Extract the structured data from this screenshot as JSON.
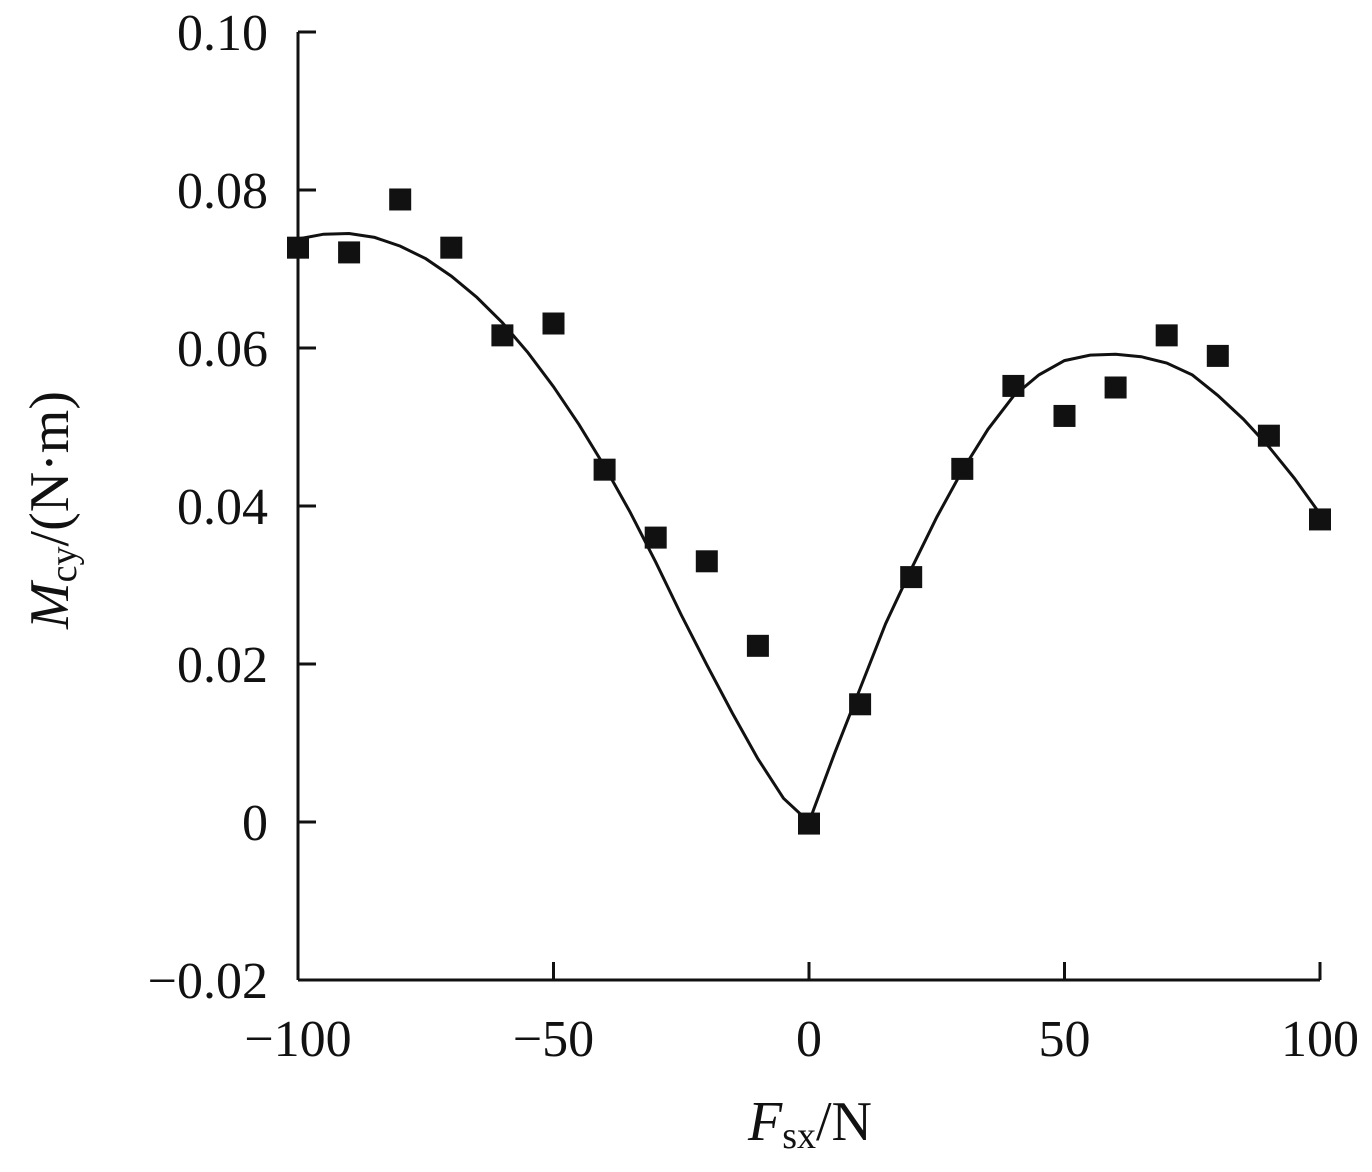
{
  "chart_data": {
    "type": "scatter",
    "title": "",
    "xlabel": {
      "main": "F",
      "sub": "sx",
      "unit": "/N"
    },
    "ylabel": {
      "main": "M",
      "sub": "cy",
      "unit": "/(N·m)"
    },
    "xlim": [
      -100,
      100
    ],
    "ylim": [
      -0.02,
      0.1
    ],
    "x_ticks": [
      -100,
      -50,
      0,
      50,
      100
    ],
    "x_tick_labels": [
      "−100",
      "−50",
      "0",
      "50",
      "100"
    ],
    "y_ticks": [
      -0.02,
      0,
      0.02,
      0.04,
      0.06,
      0.08,
      0.1
    ],
    "y_tick_labels": [
      "−0.02",
      "0",
      "0.02",
      "0.04",
      "0.06",
      "0.08",
      "0.10"
    ],
    "grid": false,
    "legend": "none",
    "series": [
      {
        "style": "markers",
        "marker": "square",
        "color": "#111111",
        "x": [
          -100,
          -90,
          -80,
          -70,
          -60,
          -50,
          -40,
          -30,
          -20,
          -10,
          0,
          10,
          20,
          30,
          40,
          50,
          60,
          70,
          80,
          90,
          100
        ],
        "y": [
          0.0727,
          0.0721,
          0.0788,
          0.0727,
          0.0616,
          0.0631,
          0.0446,
          0.036,
          0.033,
          0.0223,
          -0.0002,
          0.0149,
          0.031,
          0.0447,
          0.0552,
          0.0514,
          0.055,
          0.0616,
          0.059,
          0.0489,
          0.0383
        ]
      },
      {
        "style": "line",
        "color": "#111111",
        "x": [
          -100,
          -95,
          -90,
          -85,
          -80,
          -75,
          -70,
          -65,
          -60,
          -55,
          -50,
          -45,
          -40,
          -35,
          -30,
          -25,
          -20,
          -15,
          -10,
          -5,
          0,
          5,
          10,
          15,
          20,
          25,
          30,
          35,
          40,
          45,
          50,
          55,
          60,
          65,
          70,
          75,
          80,
          85,
          90,
          95,
          100
        ],
        "y": [
          0.0738,
          0.0744,
          0.0745,
          0.074,
          0.0729,
          0.0713,
          0.0691,
          0.0664,
          0.0632,
          0.0594,
          0.0551,
          0.0503,
          0.045,
          0.0392,
          0.0329,
          0.0262,
          0.0199,
          0.0138,
          0.008,
          0.003,
          0.0,
          0.0087,
          0.0169,
          0.0251,
          0.032,
          0.0386,
          0.0445,
          0.0497,
          0.0539,
          0.0566,
          0.0584,
          0.0591,
          0.0592,
          0.0589,
          0.0581,
          0.0566,
          0.054,
          0.051,
          0.0475,
          0.0435,
          0.039
        ]
      }
    ]
  }
}
